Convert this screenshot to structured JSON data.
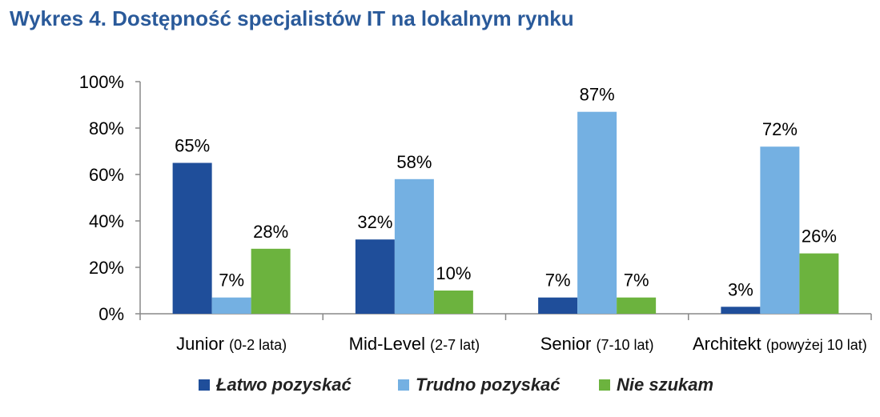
{
  "title": "Wykres 4. Dostępność specjalistów IT na lokalnym rynku",
  "chart_data": {
    "type": "bar",
    "categories": [
      {
        "main": "Junior",
        "sub": "(0-2 lata)"
      },
      {
        "main": "Mid-Level",
        "sub": "(2-7 lat)"
      },
      {
        "main": "Senior",
        "sub": "(7-10 lat)"
      },
      {
        "main": "Architekt",
        "sub": "(powyżej 10 lat)"
      }
    ],
    "series": [
      {
        "name": "Łatwo pozyskać",
        "color": "#1f4e9a",
        "values": [
          65,
          32,
          7,
          3
        ],
        "labels": [
          "65%",
          "32%",
          "7%",
          "3%"
        ]
      },
      {
        "name": "Trudno pozyskać",
        "color": "#74b0e2",
        "values": [
          7,
          58,
          87,
          72
        ],
        "labels": [
          "7%",
          "58%",
          "87%",
          "72%"
        ]
      },
      {
        "name": "Nie szukam",
        "color": "#6cb33e",
        "values": [
          28,
          10,
          7,
          26
        ],
        "labels": [
          "28%",
          "10%",
          "7%",
          "26%"
        ]
      }
    ],
    "yticks": [
      "0%",
      "20%",
      "40%",
      "60%",
      "80%",
      "100%"
    ],
    "ylim": [
      0,
      100
    ],
    "grid": false,
    "legend_position": "bottom"
  }
}
